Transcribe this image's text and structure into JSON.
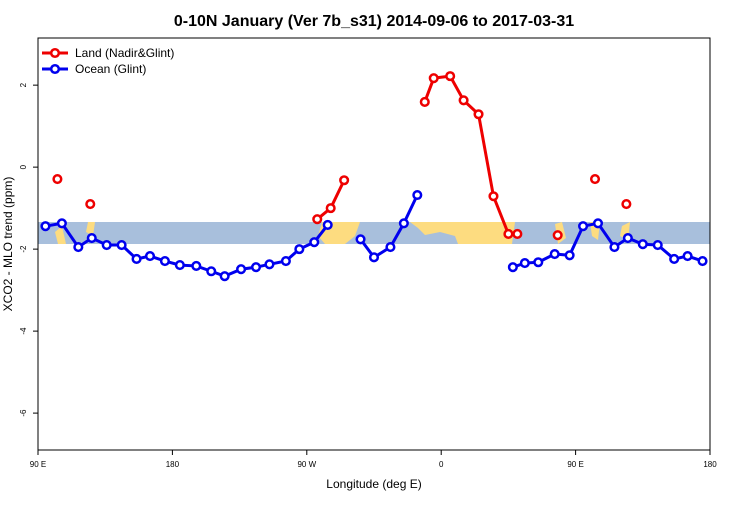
{
  "chart_data": {
    "type": "line",
    "title": "0-10N January (Ver 7b_s31)   2014-09-06 to 2017-03-31",
    "x_label": "Longitude (deg E)",
    "y_label": "XCO2 - MLO trend (ppm)",
    "xlim": [
      90,
      540
    ],
    "ylim": [
      -6.9,
      3.15
    ],
    "xticks": [
      {
        "value": 90,
        "label": "90 E"
      },
      180,
      {
        "value": 270,
        "label": "90 W"
      },
      {
        "value": 360,
        "label": "0"
      },
      {
        "value": 450,
        "label": "90 E"
      },
      {
        "value": 540,
        "label": "180"
      }
    ],
    "yticks": [
      -6,
      -4,
      -2,
      0,
      2
    ],
    "legend": "top-left",
    "series": [
      {
        "name": "Land (Nadir&Glint)",
        "color": "#ee0000",
        "x": [
          103,
          114,
          125,
          200,
          277,
          286,
          295,
          322,
          349,
          355,
          366,
          375,
          385,
          395,
          405,
          408,
          411,
          425,
          438,
          450,
          463,
          474,
          484
        ],
        "values": [
          -0.29,
          null,
          -0.9,
          null,
          -1.27,
          -1.0,
          -0.32,
          null,
          1.59,
          2.17,
          2.22,
          1.63,
          1.29,
          -0.71,
          -1.63,
          null,
          -1.63,
          null,
          -1.66,
          null,
          -0.29,
          null,
          -0.9
        ]
      },
      {
        "name": "Ocean (Glint)",
        "color": "#0000ee",
        "x": [
          95,
          106,
          117,
          126,
          136,
          146,
          156,
          165,
          175,
          185,
          196,
          206,
          215,
          226,
          236,
          245,
          256,
          265,
          275,
          284,
          295,
          306,
          315,
          326,
          335,
          344,
          376,
          408,
          416,
          425,
          436,
          446,
          455,
          465,
          476,
          485,
          495,
          505,
          516,
          525,
          535
        ],
        "values": [
          -1.44,
          -1.37,
          -1.95,
          -1.73,
          -1.9,
          -1.9,
          -2.24,
          -2.17,
          -2.29,
          -2.39,
          -2.41,
          -2.54,
          -2.66,
          -2.49,
          -2.44,
          -2.37,
          -2.29,
          -2.0,
          -1.83,
          -1.41,
          null,
          -1.76,
          -2.2,
          -1.95,
          -1.37,
          -0.68,
          null,
          -2.44,
          -2.34,
          -2.32,
          -2.12,
          -2.15,
          -1.44,
          -1.37,
          -1.95,
          -1.73,
          -1.88,
          -1.9,
          -2.24,
          -2.17,
          -2.29
        ]
      }
    ]
  }
}
